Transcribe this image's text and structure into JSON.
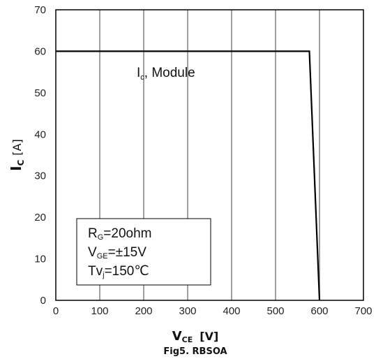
{
  "chart_data": {
    "type": "line",
    "xlabel": {
      "main": "V",
      "sub": "CE",
      "unit": "[V]"
    },
    "ylabel": {
      "main": "I",
      "sub": "C",
      "unit": "[A]"
    },
    "xlim": [
      0,
      700
    ],
    "ylim": [
      0,
      70
    ],
    "x_ticks": [
      0,
      100,
      200,
      300,
      400,
      500,
      600,
      700
    ],
    "y_ticks": [
      0,
      10,
      20,
      30,
      40,
      50,
      60,
      70
    ],
    "grid": "vertical",
    "series": [
      {
        "name": "Ic, Module",
        "color": "#000000",
        "points": [
          [
            0,
            60
          ],
          [
            577,
            60
          ],
          [
            600,
            0
          ]
        ]
      }
    ],
    "series_label": {
      "main": "I",
      "sub": "c",
      "rest": ", Module"
    },
    "conditions": [
      {
        "main": "R",
        "sub": "G",
        "rest": "=20ohm"
      },
      {
        "main": "V",
        "sub": "GE",
        "rest": "=±15V"
      },
      {
        "main": "Tv",
        "sub": "j",
        "rest": "=150℃"
      }
    ],
    "caption": "Fig5. RBSOA"
  },
  "colors": {
    "grid": "#888888",
    "frame": "#000000",
    "line": "#000000"
  }
}
